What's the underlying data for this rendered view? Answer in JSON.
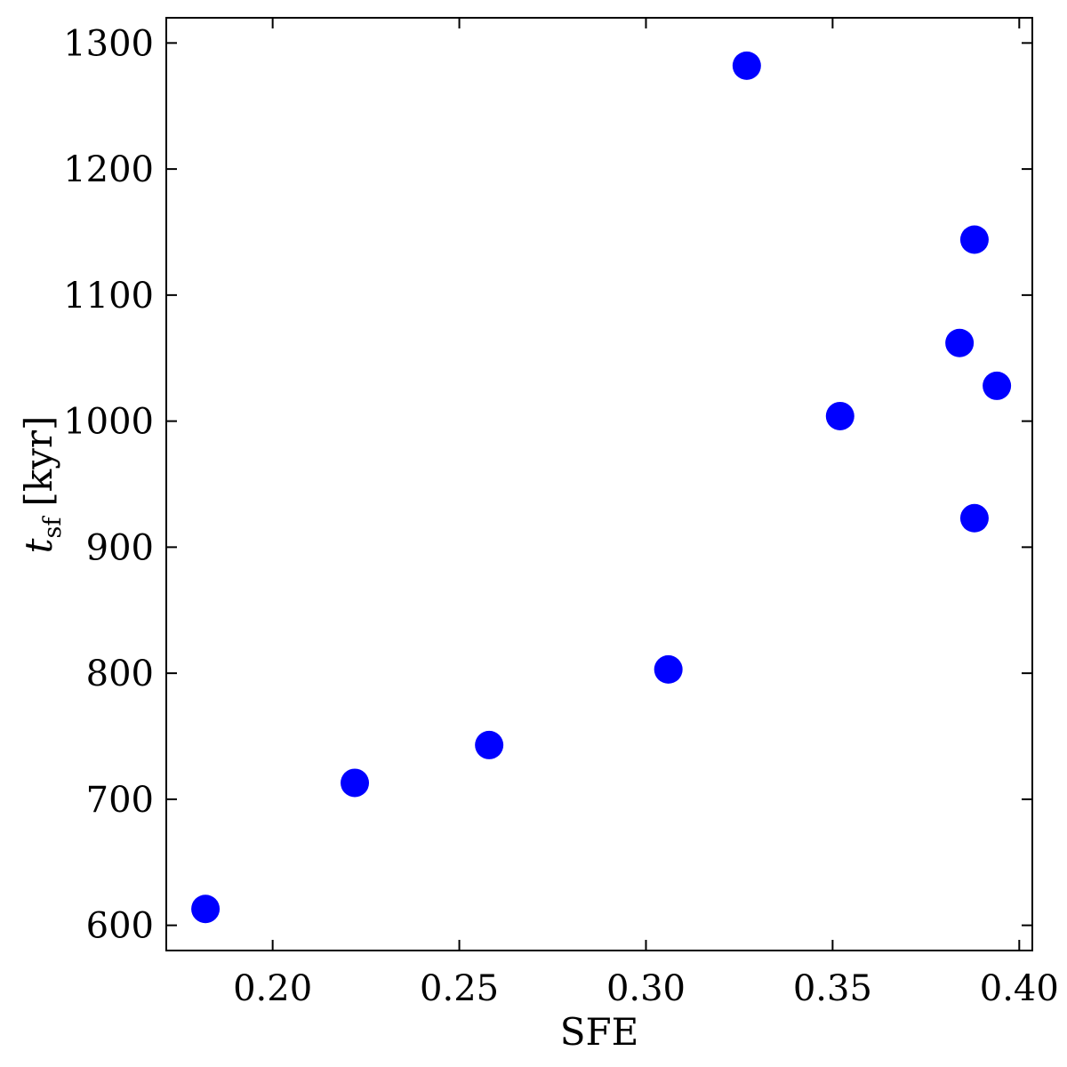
{
  "chart_data": {
    "type": "scatter",
    "xlabel": "SFE",
    "ylabel": {
      "symbol": "t",
      "subscript": "sf",
      "unit": "[kyr]"
    },
    "xlim": [
      0.1715,
      0.4035
    ],
    "ylim": [
      580,
      1320
    ],
    "xticks": [
      0.2,
      0.25,
      0.3,
      0.35,
      0.4
    ],
    "xtick_labels": [
      "0.20",
      "0.25",
      "0.30",
      "0.35",
      "0.40"
    ],
    "yticks": [
      600,
      700,
      800,
      900,
      1000,
      1100,
      1200,
      1300
    ],
    "ytick_labels": [
      "600",
      "700",
      "800",
      "900",
      "1000",
      "1100",
      "1200",
      "1300"
    ],
    "grid": false,
    "marker_color": "#0000ff",
    "points": [
      {
        "x": 0.182,
        "y": 613
      },
      {
        "x": 0.222,
        "y": 713
      },
      {
        "x": 0.258,
        "y": 743
      },
      {
        "x": 0.306,
        "y": 803
      },
      {
        "x": 0.327,
        "y": 1282
      },
      {
        "x": 0.352,
        "y": 1004
      },
      {
        "x": 0.384,
        "y": 1062
      },
      {
        "x": 0.388,
        "y": 1144
      },
      {
        "x": 0.388,
        "y": 923
      },
      {
        "x": 0.394,
        "y": 1028
      }
    ]
  }
}
